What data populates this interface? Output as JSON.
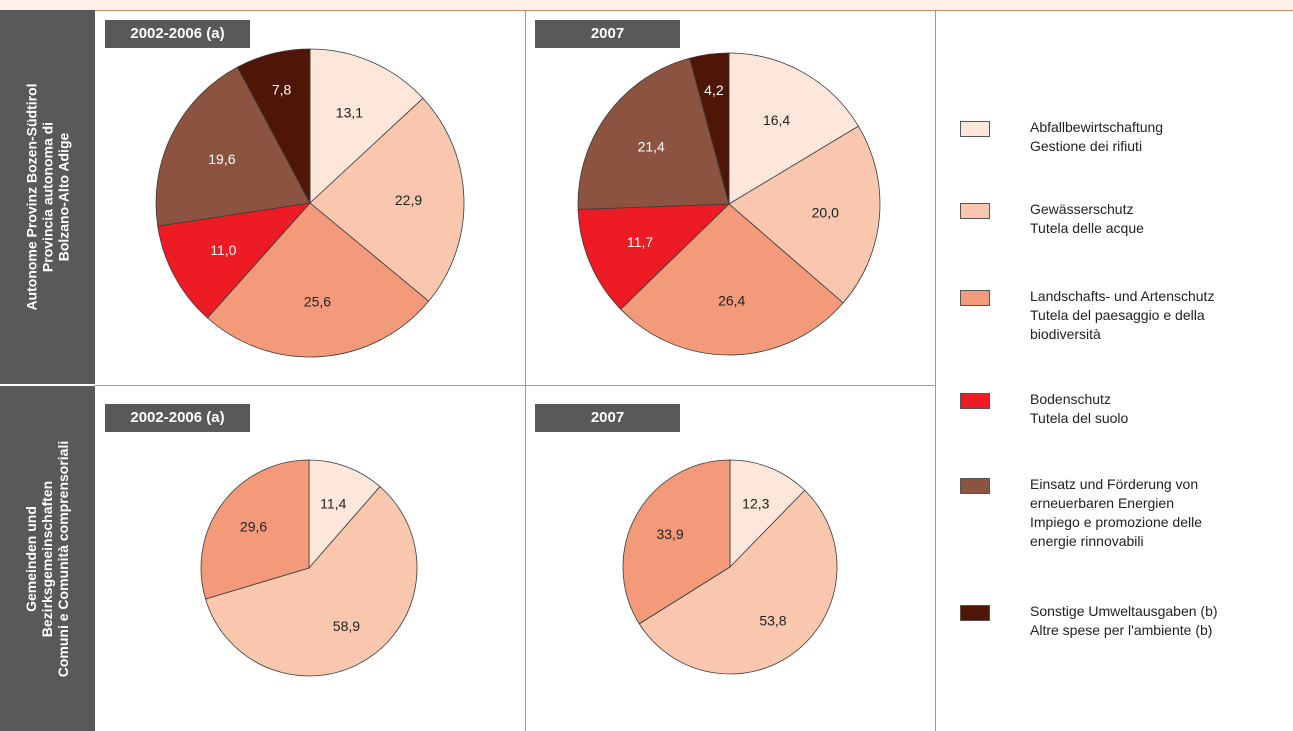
{
  "row_labels": [
    {
      "lines": [
        "Autonome Provinz Bozen-Südtirol",
        "Provincia autonoma di",
        "Bolzano-Alto Adige"
      ]
    },
    {
      "lines": [
        "Gemeinden und",
        "Bezirksgemeinschaften",
        "Comuni e Comunità comprensoriali"
      ]
    }
  ],
  "legend": [
    {
      "lines": [
        "Abfallbewirtschaftung",
        "Gestione dei rifiuti"
      ],
      "color": "#fde6da"
    },
    {
      "lines": [
        "Gewässerschutz",
        "Tutela delle acque"
      ],
      "color": "#f9c7ae"
    },
    {
      "lines": [
        "Landschafts- und Artenschutz",
        "Tutela del paesaggio e della",
        "biodiversità"
      ],
      "color": "#f39a7a"
    },
    {
      "lines": [
        "Bodenschutz",
        "Tutela del suolo"
      ],
      "color": "#ed1c24"
    },
    {
      "lines": [
        "Einsatz und Förderung von",
        "erneuerbaren Energien",
        "Impiego e promozione delle",
        "energie rinnovabili"
      ],
      "color": "#8c5440"
    },
    {
      "lines": [
        "Sonstige Umweltausgaben (b)",
        "Altre spese per l'ambiente (b)"
      ],
      "color": "#4f1608"
    }
  ],
  "chart_data": [
    {
      "type": "pie",
      "title": "2002-2006 (a)",
      "group": "Autonome Provinz Bozen-Südtirol / Provincia autonoma di Bolzano-Alto Adige",
      "slices": [
        {
          "value": 13.1,
          "label": "13,1",
          "category": 0
        },
        {
          "value": 22.9,
          "label": "22,9",
          "category": 1
        },
        {
          "value": 25.6,
          "label": "25,6",
          "category": 2
        },
        {
          "value": 11.0,
          "label": "11,0",
          "category": 3
        },
        {
          "value": 19.6,
          "label": "19,6",
          "category": 4
        },
        {
          "value": 7.8,
          "label": "7,8",
          "category": 5
        }
      ]
    },
    {
      "type": "pie",
      "title": "2007",
      "group": "Autonome Provinz Bozen-Südtirol / Provincia autonoma di Bolzano-Alto Adige",
      "slices": [
        {
          "value": 16.4,
          "label": "16,4",
          "category": 0
        },
        {
          "value": 20.0,
          "label": "20,0",
          "category": 1
        },
        {
          "value": 26.4,
          "label": "26,4",
          "category": 2
        },
        {
          "value": 11.7,
          "label": "11,7",
          "category": 3
        },
        {
          "value": 21.4,
          "label": "21,4",
          "category": 4
        },
        {
          "value": 4.2,
          "label": "4,2",
          "category": 5
        }
      ]
    },
    {
      "type": "pie",
      "title": "2002-2006 (a)",
      "group": "Gemeinden und Bezirksgemeinschaften / Comuni e Comunità comprensoriali",
      "slices": [
        {
          "value": 11.4,
          "label": "11,4",
          "category": 0
        },
        {
          "value": 58.9,
          "label": "58,9",
          "category": 1
        },
        {
          "value": 29.6,
          "label": "29,6",
          "category": 2
        }
      ]
    },
    {
      "type": "pie",
      "title": "2007",
      "group": "Gemeinden und Bezirksgemeinschaften / Comuni e Comunità comprensoriali",
      "slices": [
        {
          "value": 12.3,
          "label": "12,3",
          "category": 0
        },
        {
          "value": 53.8,
          "label": "53,8",
          "category": 1
        },
        {
          "value": 33.9,
          "label": "33,9",
          "category": 2
        }
      ]
    }
  ]
}
